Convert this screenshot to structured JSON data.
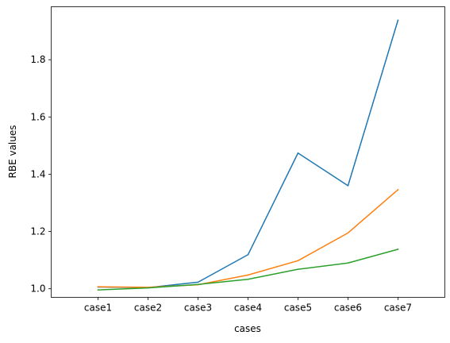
{
  "chart_data": {
    "type": "line",
    "categories": [
      "case1",
      "case2",
      "case3",
      "case4",
      "case5",
      "case6",
      "case7"
    ],
    "series": [
      {
        "color": "#1f77b4",
        "values": [
          1.006,
          1.004,
          1.023,
          1.119,
          1.474,
          1.36,
          1.938
        ]
      },
      {
        "color": "#ff7f0e",
        "values": [
          1.007,
          1.005,
          1.014,
          1.048,
          1.098,
          1.195,
          1.346
        ]
      },
      {
        "color": "#2ca02c",
        "values": [
          0.996,
          1.003,
          1.015,
          1.033,
          1.068,
          1.09,
          1.138
        ]
      }
    ],
    "xlabel": "cases",
    "ylabel": "RBE values",
    "ylim": [
      0.97,
      1.985
    ],
    "yticks": [
      "1.0",
      "1.2",
      "1.4",
      "1.6",
      "1.8"
    ],
    "grid": false
  }
}
